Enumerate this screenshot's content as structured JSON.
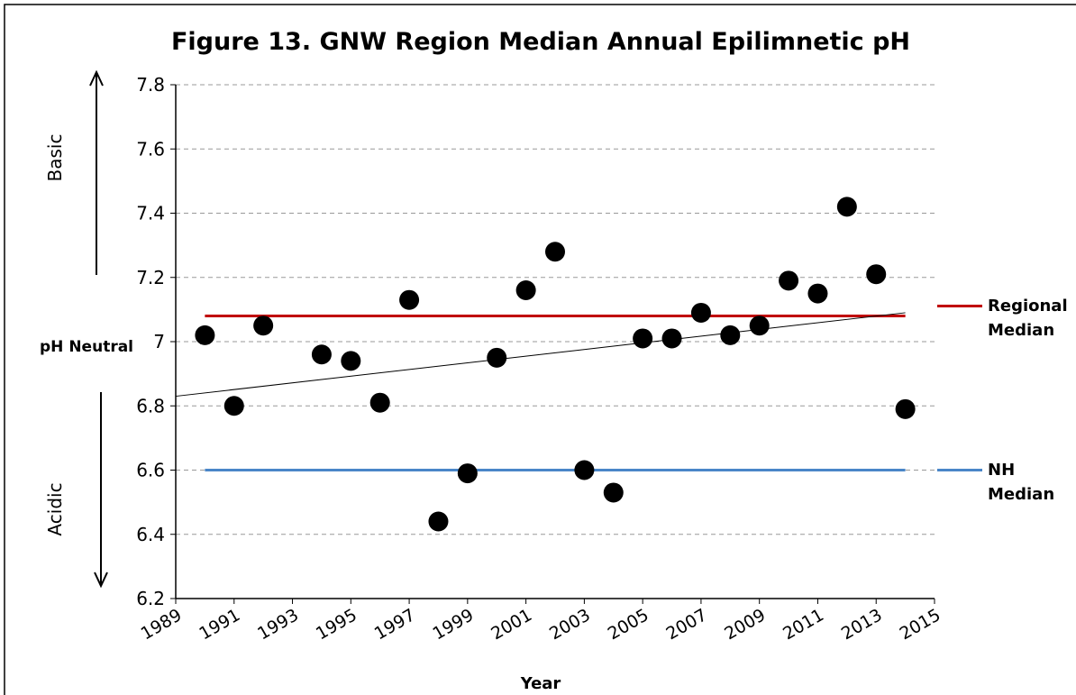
{
  "chart_data": {
    "type": "scatter",
    "title": "Figure 13. GNW Region Median Annual Epilimnetic pH",
    "xlabel": "Year",
    "annotations": {
      "basic": "Basic",
      "acidic": "Acidic",
      "neutral": "pH Neutral"
    },
    "x": [
      1990,
      1991,
      1992,
      1994,
      1995,
      1996,
      1997,
      1998,
      1999,
      2000,
      2001,
      2002,
      2003,
      2004,
      2005,
      2006,
      2007,
      2008,
      2009,
      2010,
      2011,
      2012,
      2013,
      2014
    ],
    "values": [
      7.02,
      6.8,
      7.05,
      6.96,
      6.94,
      6.81,
      7.13,
      6.44,
      6.59,
      6.95,
      7.16,
      7.28,
      6.6,
      6.53,
      7.01,
      7.01,
      7.09,
      7.02,
      7.05,
      7.19,
      7.15,
      7.42,
      7.21,
      6.79
    ],
    "color": "#000000",
    "reference_lines": [
      {
        "name": "Regional Median",
        "color": "#c00000",
        "x": [
          1990,
          2014
        ],
        "values": [
          7.08,
          7.08
        ]
      },
      {
        "name": "NH Median",
        "color": "#4a86c8",
        "x": [
          1990,
          2014
        ],
        "values": [
          6.6,
          6.6
        ]
      }
    ],
    "trendline": {
      "color": "#000000",
      "x": [
        1989,
        2014
      ],
      "values": [
        6.83,
        7.09
      ]
    },
    "xlim": [
      1989,
      2015
    ],
    "xticks": [
      1989,
      1991,
      1993,
      1995,
      1997,
      1999,
      2001,
      2003,
      2005,
      2007,
      2009,
      2011,
      2013,
      2015
    ],
    "ylim": [
      6.2,
      7.8
    ],
    "yticks": [
      6.2,
      6.4,
      6.6,
      6.8,
      7,
      7.2,
      7.4,
      7.6,
      7.8
    ],
    "grid": true
  }
}
